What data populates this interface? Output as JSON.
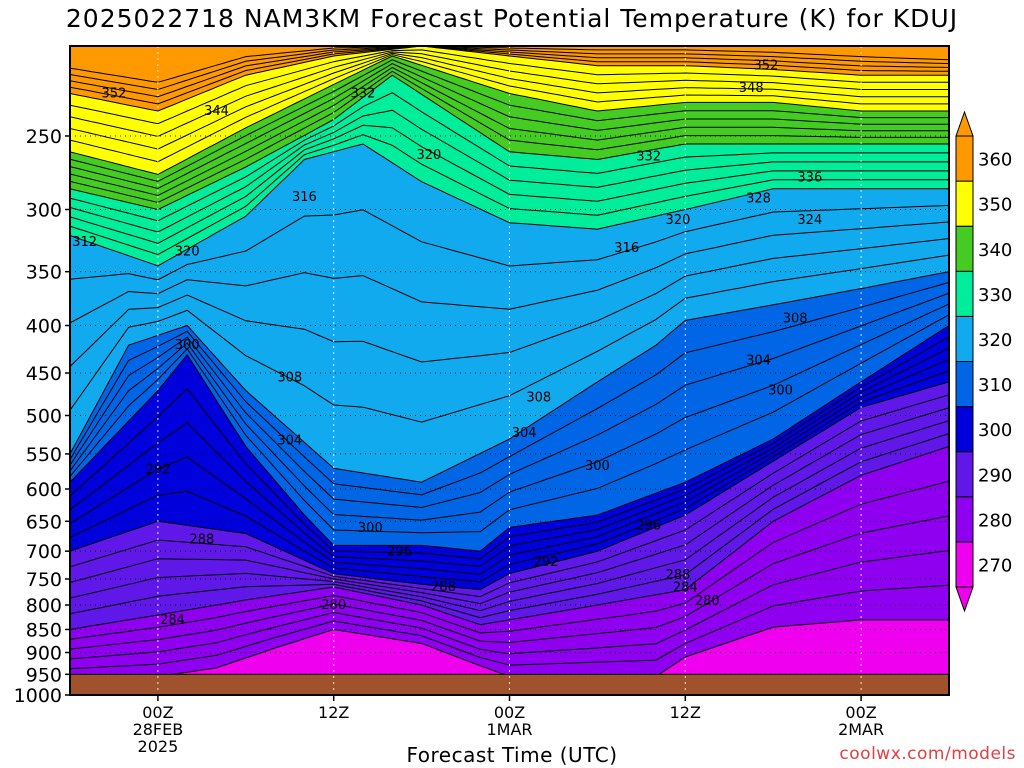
{
  "title": "2025022718 NAM3KM Forecast Potential Temperature (K) for KDUJ",
  "credit": "coolwx.com/models",
  "chart_data": {
    "type": "heatmap",
    "title": "2025022718 NAM3KM Forecast Potential Temperature (K) for KDUJ",
    "xlabel": "Forecast Time (UTC)",
    "ylabel": "",
    "y_scale": "log pressure (hPa), inverted",
    "ylim": [
      1000,
      200
    ],
    "xlim_hours": [
      0,
      60
    ],
    "x_start": "2025-02-27 18Z",
    "x_ticks": [
      {
        "hour": 6,
        "lines": [
          "00Z",
          "28FEB",
          "2025"
        ]
      },
      {
        "hour": 18,
        "lines": [
          "12Z"
        ]
      },
      {
        "hour": 30,
        "lines": [
          "00Z",
          "1MAR"
        ]
      },
      {
        "hour": 42,
        "lines": [
          "12Z"
        ]
      },
      {
        "hour": 54,
        "lines": [
          "00Z",
          "2MAR"
        ]
      }
    ],
    "y_ticks": [
      250,
      300,
      350,
      400,
      450,
      500,
      550,
      600,
      650,
      700,
      750,
      800,
      850,
      900,
      950,
      1000
    ],
    "contour_interval_K": 2,
    "colorbar": {
      "levels": [
        270,
        280,
        290,
        300,
        310,
        320,
        330,
        340,
        350,
        360
      ],
      "colors": [
        "#ef00ef",
        "#9000f0",
        "#6018e8",
        "#0000dd",
        "#0066e6",
        "#11aaee",
        "#00ee9c",
        "#44cc22",
        "#ffff00",
        "#ff9900"
      ],
      "position": "right"
    },
    "ground_below_hPa": 950,
    "ground_color": "#a0522d",
    "series": [
      {
        "values": [
          [
            0,
            1000
          ],
          [
            6,
            1000
          ],
          [
            12,
            1000
          ],
          [
            24,
            1000
          ],
          [
            36,
            1000
          ],
          [
            42,
            1000
          ],
          [
            48,
            1000
          ],
          [
            54,
            1000
          ],
          [
            60,
            1000
          ]
        ]
      },
      {
        "values": [
          [
            0,
            960
          ],
          [
            6,
            955
          ],
          [
            10,
            935
          ],
          [
            14,
            890
          ],
          [
            18,
            850
          ],
          [
            24,
            880
          ],
          [
            28,
            930
          ],
          [
            30,
            955
          ],
          [
            36,
            955
          ],
          [
            40,
            955
          ],
          [
            42,
            910
          ],
          [
            48,
            845
          ],
          [
            54,
            830
          ],
          [
            60,
            830
          ]
        ]
      },
      {
        "values": [
          [
            0,
            850
          ],
          [
            6,
            820
          ],
          [
            12,
            790
          ],
          [
            18,
            765
          ],
          [
            24,
            800
          ],
          [
            28,
            840
          ],
          [
            30,
            830
          ],
          [
            36,
            800
          ],
          [
            42,
            770
          ],
          [
            48,
            650
          ],
          [
            54,
            580
          ],
          [
            60,
            540
          ]
        ]
      },
      {
        "values": [
          [
            0,
            700
          ],
          [
            6,
            650
          ],
          [
            12,
            670
          ],
          [
            18,
            740
          ],
          [
            24,
            760
          ],
          [
            28,
            770
          ],
          [
            30,
            740
          ],
          [
            36,
            700
          ],
          [
            42,
            640
          ],
          [
            48,
            560
          ],
          [
            54,
            490
          ],
          [
            60,
            460
          ]
        ]
      },
      {
        "values": [
          [
            0,
            590
          ],
          [
            6,
            470
          ],
          [
            8,
            430
          ],
          [
            12,
            540
          ],
          [
            16,
            640
          ],
          [
            18,
            690
          ],
          [
            24,
            690
          ],
          [
            28,
            700
          ],
          [
            30,
            660
          ],
          [
            36,
            640
          ],
          [
            42,
            590
          ],
          [
            48,
            530
          ],
          [
            54,
            460
          ],
          [
            60,
            400
          ]
        ]
      },
      {
        "values": [
          [
            0,
            550
          ],
          [
            4,
            420
          ],
          [
            8,
            400
          ],
          [
            12,
            470
          ],
          [
            18,
            570
          ],
          [
            24,
            590
          ],
          [
            30,
            530
          ],
          [
            36,
            460
          ],
          [
            40,
            420
          ],
          [
            42,
            395
          ],
          [
            48,
            380
          ],
          [
            54,
            365
          ],
          [
            60,
            350
          ]
        ]
      },
      {
        "values": [
          [
            0,
            320
          ],
          [
            6,
            345
          ],
          [
            12,
            305
          ],
          [
            16,
            265
          ],
          [
            20,
            255
          ],
          [
            24,
            280
          ],
          [
            30,
            310
          ],
          [
            36,
            315
          ],
          [
            42,
            300
          ],
          [
            48,
            285
          ],
          [
            54,
            285
          ],
          [
            60,
            285
          ]
        ]
      },
      {
        "values": [
          [
            0,
            285
          ],
          [
            6,
            300
          ],
          [
            12,
            270
          ],
          [
            18,
            240
          ],
          [
            22,
            215
          ],
          [
            30,
            260
          ],
          [
            36,
            265
          ],
          [
            42,
            255
          ],
          [
            48,
            255
          ],
          [
            54,
            255
          ],
          [
            60,
            255
          ]
        ]
      },
      {
        "values": [
          [
            0,
            260
          ],
          [
            6,
            275
          ],
          [
            12,
            245
          ],
          [
            18,
            220
          ],
          [
            22,
            205
          ],
          [
            30,
            225
          ],
          [
            36,
            235
          ],
          [
            42,
            230
          ],
          [
            48,
            230
          ],
          [
            54,
            235
          ],
          [
            60,
            235
          ]
        ]
      },
      {
        "values": [
          [
            0,
            225
          ],
          [
            6,
            235
          ],
          [
            12,
            215
          ],
          [
            18,
            205
          ],
          [
            24,
            200
          ],
          [
            30,
            205
          ],
          [
            36,
            210
          ],
          [
            42,
            210
          ],
          [
            48,
            212
          ],
          [
            54,
            215
          ],
          [
            60,
            215
          ]
        ]
      },
      {
        "values": [
          [
            0,
            208
          ],
          [
            6,
            215
          ],
          [
            12,
            203
          ],
          [
            18,
            200
          ],
          [
            24,
            200
          ],
          [
            30,
            200
          ],
          [
            36,
            200
          ],
          [
            42,
            200
          ],
          [
            48,
            201
          ],
          [
            54,
            203
          ],
          [
            60,
            205
          ]
        ]
      }
    ],
    "contour_labels": [
      {
        "text": "352",
        "hour": 3,
        "p": 225
      },
      {
        "text": "344",
        "hour": 10,
        "p": 235
      },
      {
        "text": "332",
        "hour": 20,
        "p": 225
      },
      {
        "text": "352",
        "hour": 47.5,
        "p": 210
      },
      {
        "text": "348",
        "hour": 46.5,
        "p": 222
      },
      {
        "text": "320",
        "hour": 24.5,
        "p": 262
      },
      {
        "text": "332",
        "hour": 39.5,
        "p": 263
      },
      {
        "text": "336",
        "hour": 50.5,
        "p": 277
      },
      {
        "text": "316",
        "hour": 16,
        "p": 291
      },
      {
        "text": "328",
        "hour": 47,
        "p": 292
      },
      {
        "text": "320",
        "hour": 41.5,
        "p": 308
      },
      {
        "text": "324",
        "hour": 50.5,
        "p": 308
      },
      {
        "text": "312",
        "hour": 1,
        "p": 325
      },
      {
        "text": "320",
        "hour": 8,
        "p": 333
      },
      {
        "text": "316",
        "hour": 38,
        "p": 330
      },
      {
        "text": "308",
        "hour": 49.5,
        "p": 393
      },
      {
        "text": "300",
        "hour": 8,
        "p": 420
      },
      {
        "text": "308",
        "hour": 15,
        "p": 455
      },
      {
        "text": "304",
        "hour": 47,
        "p": 436
      },
      {
        "text": "300",
        "hour": 48.5,
        "p": 470
      },
      {
        "text": "308",
        "hour": 32,
        "p": 478
      },
      {
        "text": "304",
        "hour": 15,
        "p": 532
      },
      {
        "text": "304",
        "hour": 31,
        "p": 522
      },
      {
        "text": "292",
        "hour": 6,
        "p": 572
      },
      {
        "text": "300",
        "hour": 36,
        "p": 567
      },
      {
        "text": "300",
        "hour": 20.5,
        "p": 661
      },
      {
        "text": "296",
        "hour": 39.5,
        "p": 657
      },
      {
        "text": "288",
        "hour": 9,
        "p": 680
      },
      {
        "text": "296",
        "hour": 22.5,
        "p": 701
      },
      {
        "text": "292",
        "hour": 32.5,
        "p": 719
      },
      {
        "text": "288",
        "hour": 41.5,
        "p": 743
      },
      {
        "text": "288",
        "hour": 25.5,
        "p": 765
      },
      {
        "text": "284",
        "hour": 42,
        "p": 766
      },
      {
        "text": "280",
        "hour": 43.5,
        "p": 792
      },
      {
        "text": "280",
        "hour": 18,
        "p": 800
      },
      {
        "text": "284",
        "hour": 7,
        "p": 830
      }
    ]
  }
}
